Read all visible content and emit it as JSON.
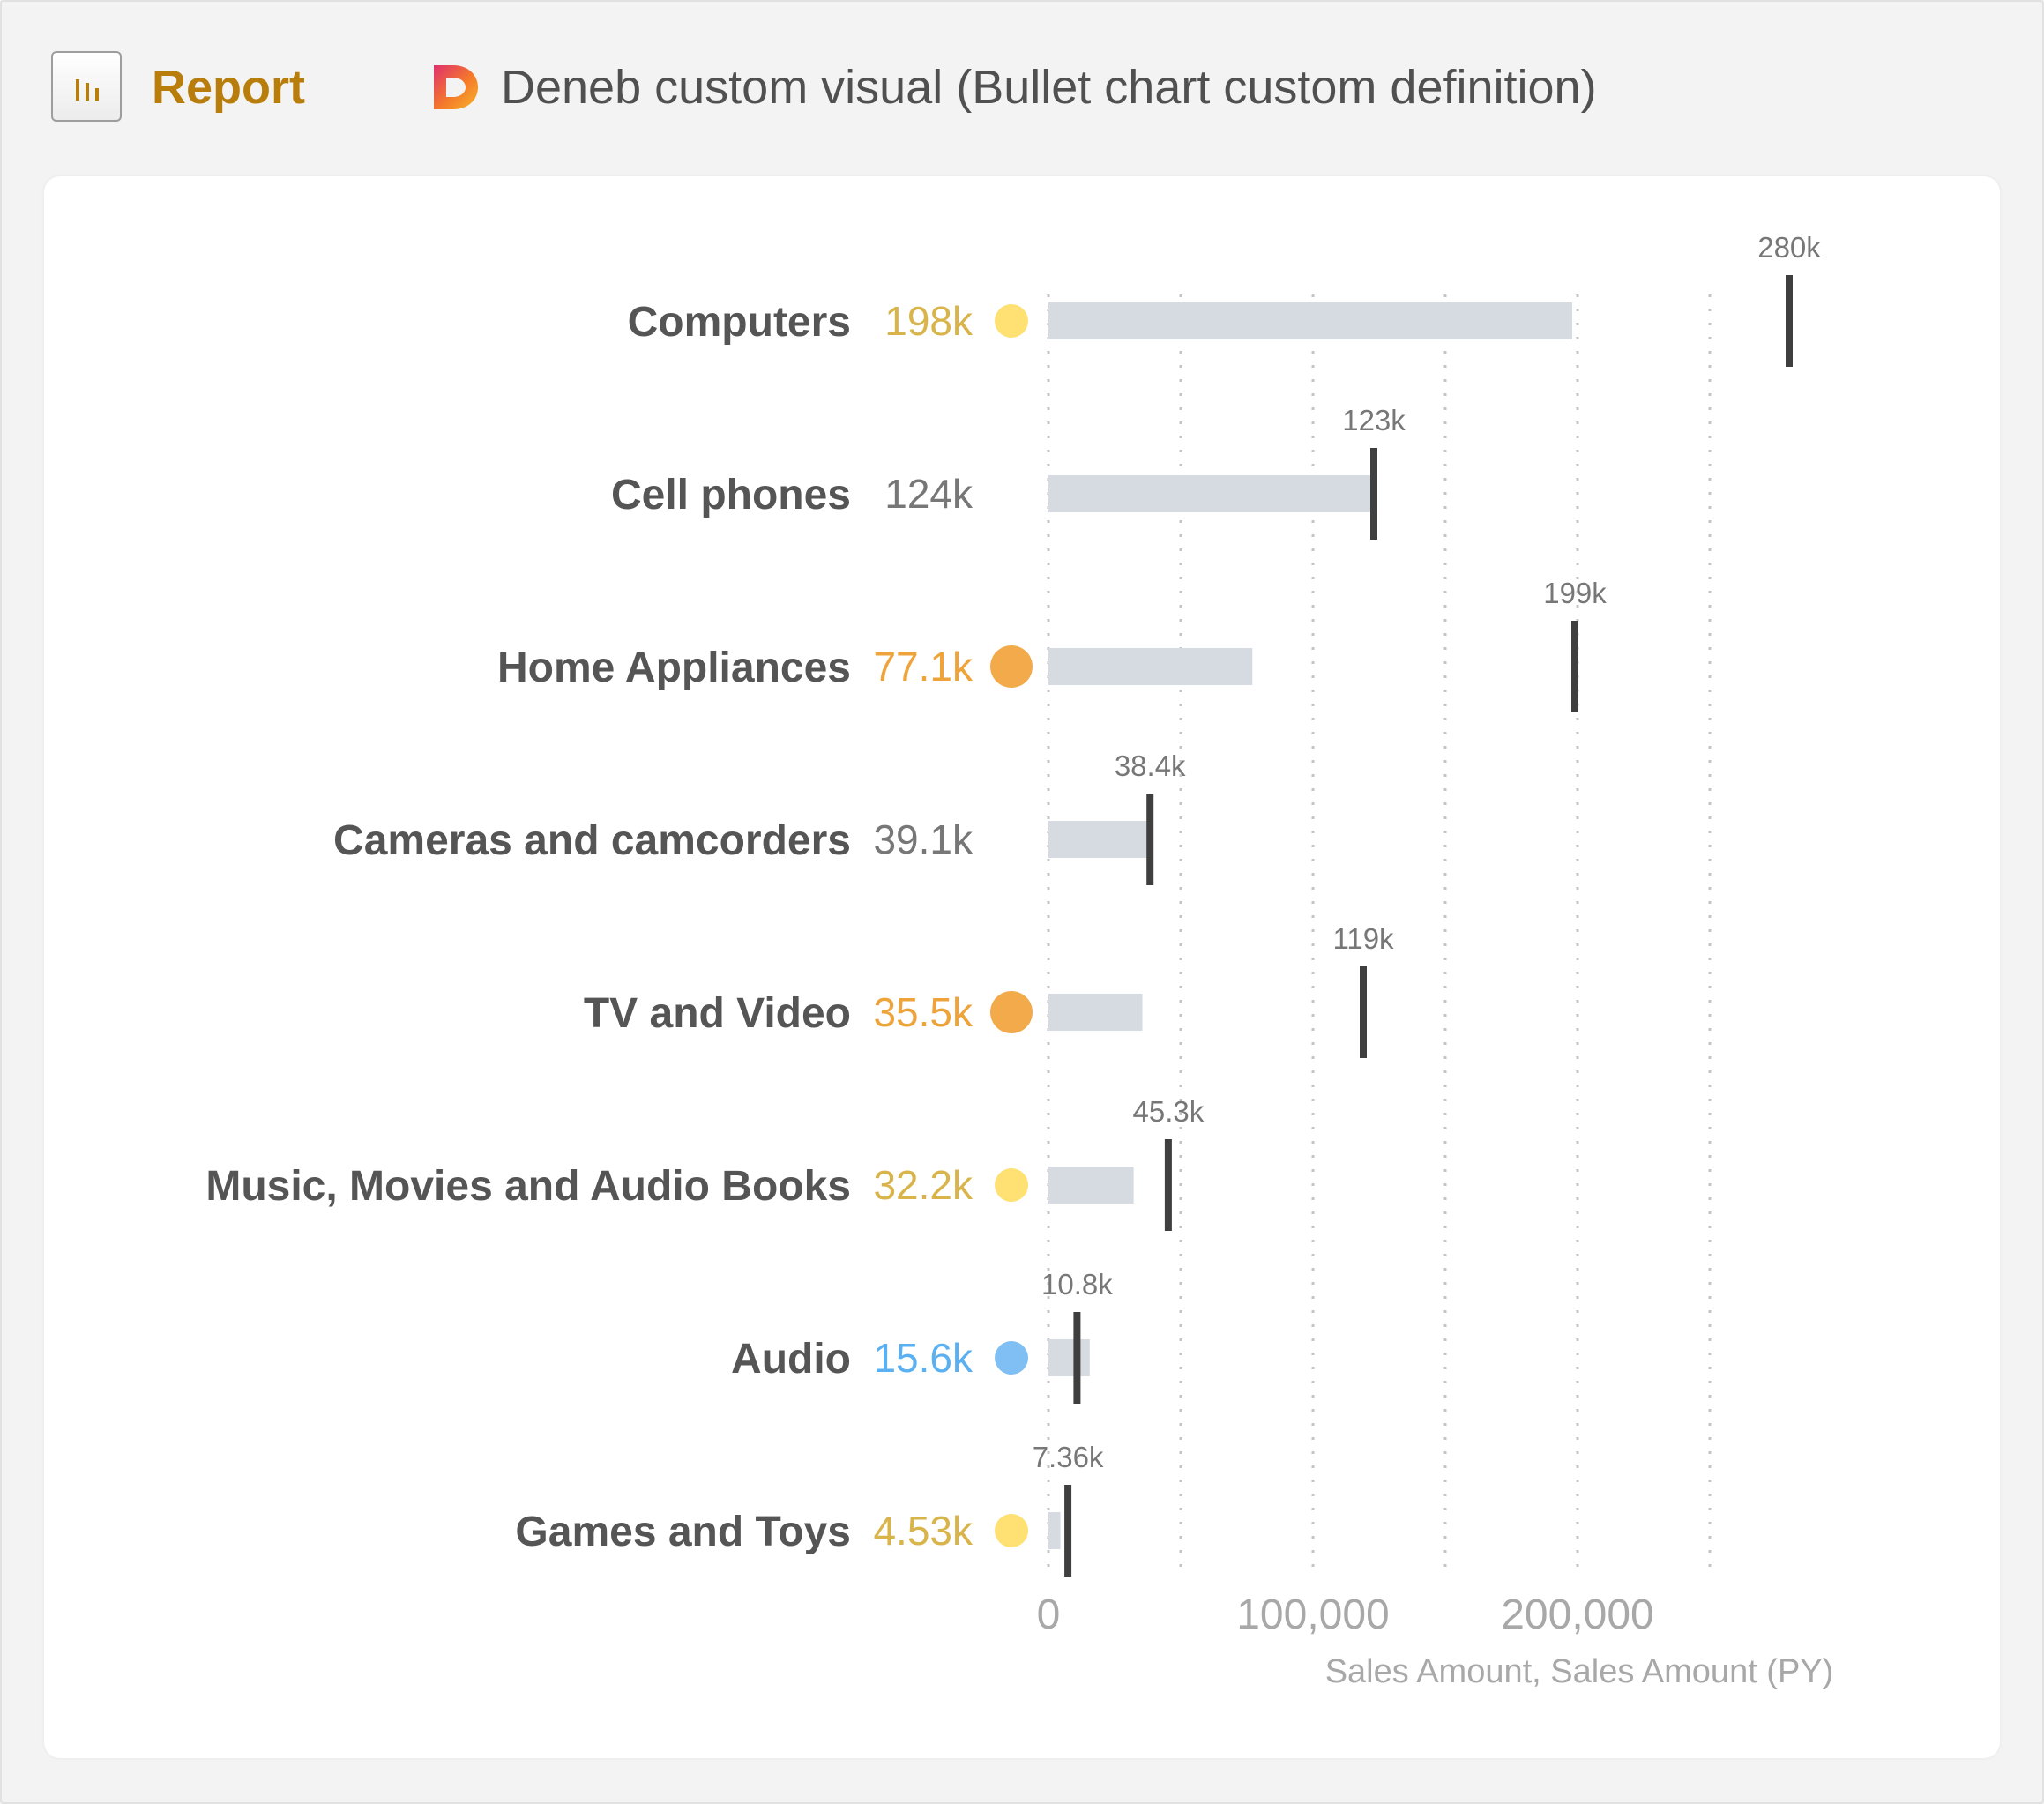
{
  "header": {
    "report_label": "Report",
    "visual_title": "Deneb custom visual (Bullet chart custom definition)"
  },
  "icons": {
    "report": "bar-chart-icon",
    "deneb": "deneb-logo-icon"
  },
  "colors": {
    "accent": "#b87d0b",
    "bar": "#d6dae1",
    "target": "#3f3f3f",
    "neutral_value": "#777777",
    "status_yellow": "#ffe072",
    "status_yellow_text": "#d8b44a",
    "status_orange": "#f2aa4b",
    "status_orange_text": "#eea33b",
    "status_blue": "#7fbff4",
    "status_blue_text": "#5ab0f0"
  },
  "chart_data": {
    "type": "bar",
    "subtype": "bullet",
    "categories": [
      "Computers",
      "Cell phones",
      "Home Appliances",
      "Cameras and camcorders",
      "TV and Video",
      "Music, Movies and Audio Books",
      "Audio",
      "Games and Toys"
    ],
    "series": [
      {
        "name": "Sales Amount",
        "values": [
          198000,
          124000,
          77100,
          39100,
          35500,
          32200,
          15600,
          4530
        ],
        "labels": [
          "198k",
          "124k",
          "77.1k",
          "39.1k",
          "35.5k",
          "32.2k",
          "15.6k",
          "4.53k"
        ]
      },
      {
        "name": "Sales Amount (PY)",
        "values": [
          280000,
          123000,
          199000,
          38400,
          119000,
          45300,
          10800,
          7360
        ],
        "labels": [
          "280k",
          "123k",
          "199k",
          "38.4k",
          "119k",
          "45.3k",
          "10.8k",
          "7.36k"
        ]
      }
    ],
    "status": [
      "yellow",
      "none",
      "orange",
      "none",
      "orange",
      "yellow",
      "blue",
      "yellow"
    ],
    "xlabel": "Sales Amount, Sales Amount (PY)",
    "x_ticks": [
      0,
      100000,
      200000
    ],
    "x_tick_labels": [
      "0",
      "100,000",
      "200,000"
    ],
    "gridline_values": [
      0,
      50000,
      100000,
      150000,
      200000,
      250000
    ],
    "xlim": [
      0,
      280000
    ],
    "grid": true
  }
}
